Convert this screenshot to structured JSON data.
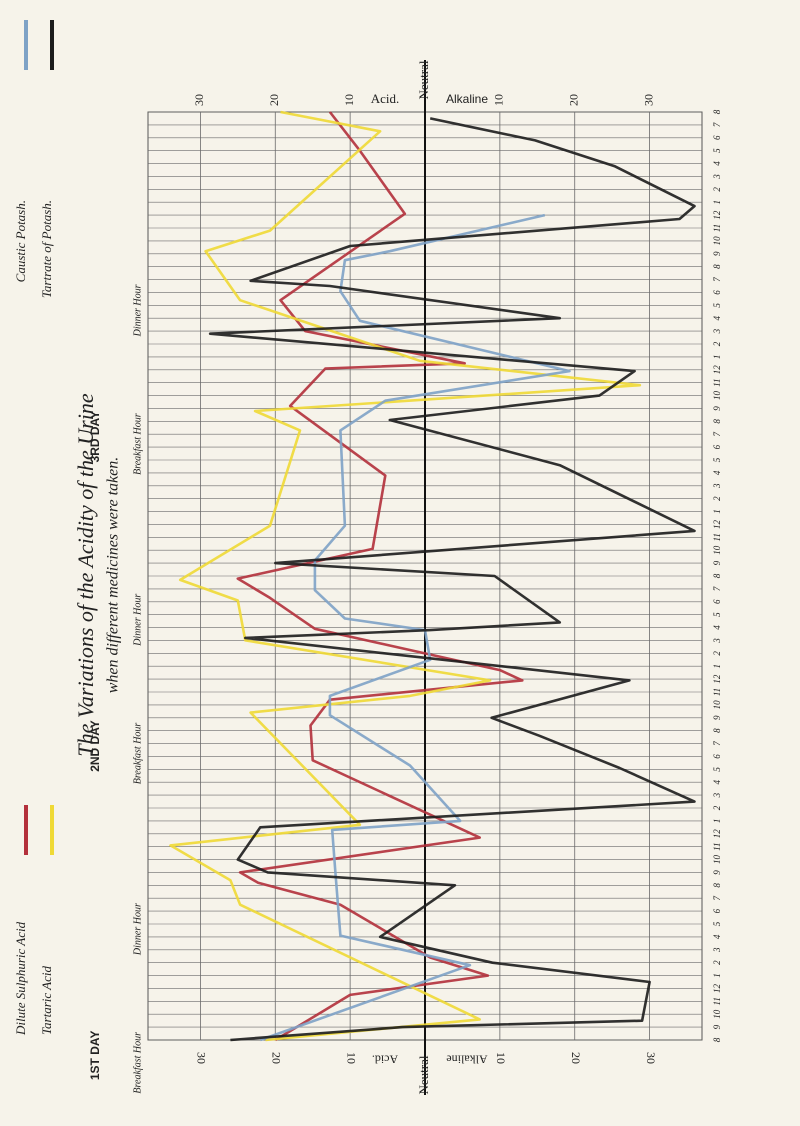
{
  "chart_data": {
    "type": "line",
    "title": "The Variations of the Acidity of the Urine",
    "subtitle": "when different medicines were taken.",
    "y_label_left": "Acid.",
    "y_label_right": "Alkaline",
    "day_labels": [
      {
        "text": "1ST DAY",
        "x": 12
      },
      {
        "text": "2ND DAY",
        "x": 36
      },
      {
        "text": "3RD DAY",
        "x": 60
      }
    ],
    "annotations": [
      {
        "text": "Breakfast Hour",
        "x": 0
      },
      {
        "text": "Dinner Hour",
        "x": 10
      },
      {
        "text": "Breakfast Hour",
        "x": 24
      },
      {
        "text": "Dinner Hour",
        "x": 34
      },
      {
        "text": "Breakfast Hour",
        "x": 48
      },
      {
        "text": "Dinner Hour",
        "x": 58
      }
    ],
    "ylim": [
      -37,
      37
    ],
    "yticks": [
      {
        "value": -30,
        "label": "30"
      },
      {
        "value": -20,
        "label": "20"
      },
      {
        "value": -10,
        "label": "10"
      },
      {
        "value": 0,
        "label": "Neutral"
      },
      10,
      20,
      30
    ],
    "xlim": [
      0,
      72
    ],
    "xticks": [
      {
        "value": 0,
        "label": "8"
      },
      {
        "value": 1,
        "label": "9"
      },
      {
        "value": 2,
        "label": "10"
      },
      {
        "value": 3,
        "label": "11"
      },
      {
        "value": 4,
        "label": "12"
      },
      {
        "value": 5,
        "label": "1"
      },
      {
        "value": 6,
        "label": "2"
      },
      {
        "value": 7,
        "label": "3"
      },
      {
        "value": 8,
        "label": "4"
      },
      {
        "value": 9,
        "label": "5"
      },
      {
        "value": 10,
        "label": "6"
      },
      {
        "value": 11,
        "label": "7"
      },
      {
        "value": 12,
        "label": "8"
      },
      {
        "value": 13,
        "label": "9"
      },
      {
        "value": 14,
        "label": "10"
      },
      {
        "value": 15,
        "label": "11"
      },
      {
        "value": 16,
        "label": "12"
      },
      {
        "value": 17,
        "label": "1"
      },
      {
        "value": 18,
        "label": "2"
      },
      {
        "value": 19,
        "label": "3"
      },
      {
        "value": 20,
        "label": "4"
      },
      {
        "value": 21,
        "label": "5"
      },
      {
        "value": 22,
        "label": "6"
      },
      {
        "value": 23,
        "label": "7"
      },
      {
        "value": 24,
        "label": "8"
      },
      {
        "value": 25,
        "label": "9"
      },
      {
        "value": 26,
        "label": "10"
      },
      {
        "value": 27,
        "label": "11"
      },
      {
        "value": 28,
        "label": "12"
      },
      {
        "value": 29,
        "label": "1"
      },
      {
        "value": 30,
        "label": "2"
      },
      {
        "value": 31,
        "label": "3"
      },
      {
        "value": 32,
        "label": "4"
      },
      {
        "value": 33,
        "label": "5"
      },
      {
        "value": 34,
        "label": "6"
      },
      {
        "value": 35,
        "label": "7"
      },
      {
        "value": 36,
        "label": "8"
      },
      {
        "value": 37,
        "label": "9"
      },
      {
        "value": 38,
        "label": "10"
      },
      {
        "value": 39,
        "label": "11"
      },
      {
        "value": 40,
        "label": "12"
      },
      {
        "value": 41,
        "label": "1"
      },
      {
        "value": 42,
        "label": "2"
      },
      {
        "value": 43,
        "label": "3"
      },
      {
        "value": 44,
        "label": "4"
      },
      {
        "value": 45,
        "label": "5"
      },
      {
        "value": 46,
        "label": "6"
      },
      {
        "value": 47,
        "label": "7"
      },
      {
        "value": 48,
        "label": "8"
      },
      {
        "value": 49,
        "label": "9"
      },
      {
        "value": 50,
        "label": "10"
      },
      {
        "value": 51,
        "label": "11"
      },
      {
        "value": 52,
        "label": "12"
      },
      {
        "value": 53,
        "label": "1"
      },
      {
        "value": 54,
        "label": "2"
      },
      {
        "value": 55,
        "label": "3"
      },
      {
        "value": 56,
        "label": "4"
      },
      {
        "value": 57,
        "label": "5"
      },
      {
        "value": 58,
        "label": "6"
      },
      {
        "value": 59,
        "label": "7"
      },
      {
        "value": 60,
        "label": "8"
      },
      {
        "value": 61,
        "label": "9"
      },
      {
        "value": 62,
        "label": "10"
      },
      {
        "value": 63,
        "label": "11"
      },
      {
        "value": 64,
        "label": "12"
      },
      {
        "value": 65,
        "label": "1"
      },
      {
        "value": 66,
        "label": "2"
      },
      {
        "value": 67,
        "label": "3"
      },
      {
        "value": 68,
        "label": "4"
      },
      {
        "value": 69,
        "label": "5"
      },
      {
        "value": 70,
        "label": "6"
      },
      {
        "value": 71,
        "label": "7"
      },
      {
        "value": 72,
        "label": "8"
      }
    ],
    "grid": true,
    "series": [
      {
        "name": "Dilute Sulphuric Acid",
        "color": "#b3303b",
        "x": [
          0,
          3.5,
          5,
          6.4,
          10.5,
          12.2,
          13,
          15.7,
          21.7,
          24.4,
          26.4,
          27.9,
          28.7,
          31.9,
          34.3,
          35.8,
          38.1,
          43.8,
          49.2,
          52.1,
          52.5,
          55,
          57.4,
          64.1,
          69,
          72
        ],
        "values": [
          -20,
          -10,
          8.4,
          0.7,
          -11.3,
          -22.3,
          -24.7,
          7.3,
          -15,
          -15.3,
          -12.7,
          13,
          10,
          -14.7,
          -20.7,
          -25,
          -7,
          -5.3,
          -18,
          -13.3,
          5.3,
          -16,
          -19.3,
          -2.7,
          -8.7,
          -12.7
        ]
      },
      {
        "name": "Tartaric Acid",
        "color": "#efd935",
        "x": [
          0,
          1.6,
          10.5,
          12.4,
          15.1,
          16.7,
          25.4,
          26.7,
          27.9,
          31,
          34.1,
          35.7,
          39.9,
          47.3,
          48.8,
          50.8,
          52.7,
          57.4,
          61.2,
          62.8,
          70.5,
          72
        ],
        "values": [
          -21.3,
          7.3,
          -24.7,
          -26,
          -34,
          -8.7,
          -23.3,
          -2,
          8.7,
          -24,
          -25,
          -32.7,
          -20.7,
          -16.7,
          -22.7,
          28.7,
          -0.7,
          -24.7,
          -29.3,
          -20.7,
          -6,
          -19.3
        ]
      },
      {
        "name": "Caustic Potash.",
        "color": "#7ea2c6",
        "x": [
          0,
          5.8,
          8.1,
          13.2,
          16.3,
          17,
          21.3,
          25.2,
          26.7,
          29.5,
          31.8,
          32.7,
          34.9,
          37.2,
          39.9,
          47.3,
          49.6,
          51.9,
          55.8,
          58.1,
          60.5,
          61.2,
          64
        ],
        "values": [
          -22,
          6,
          -11.3,
          -12,
          -12.4,
          4.7,
          -2,
          -12.7,
          -12.7,
          0.7,
          0,
          -10.7,
          -14.7,
          -14.7,
          -10.7,
          -11.3,
          -5.3,
          19.3,
          -8.7,
          -11.3,
          -10.7,
          -4.7,
          16
        ]
      },
      {
        "name": "Tartrate of Potash.",
        "color": "#1c1c1c",
        "x": [
          0,
          1,
          1.5,
          4.5,
          6,
          8,
          12,
          13,
          14,
          16.5,
          18.5,
          21.1,
          23.6,
          25,
          27.9,
          31.2,
          31.8,
          32.4,
          36,
          37,
          39.5,
          44.6,
          48.1,
          50,
          51.9,
          54.8,
          56,
          58.5,
          58.9,
          61.6,
          63.7,
          64.7,
          67.8,
          69.8,
          71.5
        ],
        "values": [
          -26,
          -3,
          29,
          30,
          9,
          -6,
          4,
          -21,
          -25,
          -22,
          36,
          26,
          15.3,
          8.9,
          27.3,
          -24,
          0.7,
          18,
          9.3,
          -20,
          36,
          18,
          -4.7,
          23.3,
          28,
          -28.7,
          18,
          -12.7,
          -23.3,
          -10,
          34,
          36,
          25.3,
          14.7,
          0.7
        ]
      }
    ]
  }
}
